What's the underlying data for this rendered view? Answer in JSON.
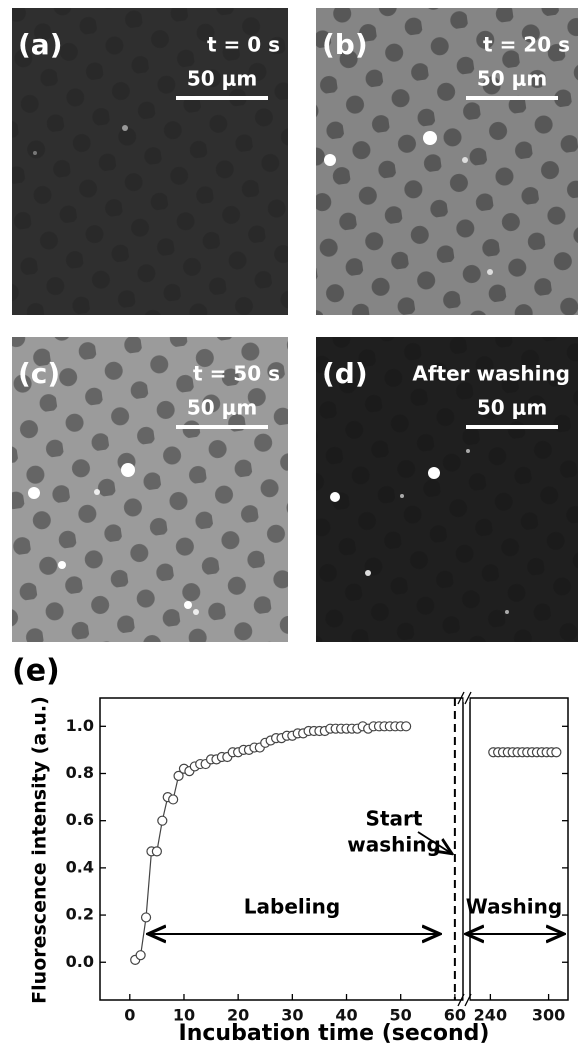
{
  "panels": [
    {
      "label": "(a)",
      "time": "t = 0 s",
      "scale": "50 μm"
    },
    {
      "label": "(b)",
      "time": "t = 20 s",
      "scale": "50 μm"
    },
    {
      "label": "(c)",
      "time": "t = 50 s",
      "scale": "50 μm"
    },
    {
      "label": "(d)",
      "time": "After washing",
      "scale": "50 μm"
    }
  ],
  "chart_data": {
    "type": "line",
    "panel_label": "(e)",
    "x_label": "Incubation time (second)",
    "y_label": "Fluorescence intensity (a.u.)",
    "segments": [
      {
        "xlim": [
          -5.5,
          61.5
        ],
        "xticks": [
          0,
          10,
          20,
          30,
          40,
          50,
          60
        ]
      },
      {
        "xlim": [
          219,
          320
        ],
        "xticks": [
          240,
          300
        ]
      }
    ],
    "ylim": [
      -0.16,
      1.12
    ],
    "yticks": [
      {
        "value": 0,
        "label": "0.0"
      },
      {
        "value": 0.2,
        "label": "0.2"
      },
      {
        "value": 0.4,
        "label": "0.4"
      },
      {
        "value": 0.6,
        "label": "0.6"
      },
      {
        "value": 0.8,
        "label": "0.8"
      },
      {
        "value": 1,
        "label": "1.0"
      }
    ],
    "vline": 60,
    "series": [
      {
        "color": "#444444",
        "line": true,
        "x": [
          1,
          2,
          3,
          4,
          5,
          6,
          7,
          8,
          9,
          10,
          11,
          12,
          13,
          14,
          15,
          16,
          17,
          18,
          19,
          20,
          21,
          22,
          23,
          24,
          25,
          26,
          27,
          28,
          29,
          30,
          31,
          32,
          33,
          34,
          35,
          36,
          37,
          38,
          39,
          40,
          41,
          42,
          43,
          44,
          45,
          46,
          47,
          48,
          49,
          50,
          51
        ],
        "values": [
          0.01,
          0.03,
          0.19,
          0.47,
          0.47,
          0.6,
          0.7,
          0.69,
          0.79,
          0.82,
          0.81,
          0.83,
          0.84,
          0.84,
          0.86,
          0.86,
          0.87,
          0.87,
          0.89,
          0.89,
          0.9,
          0.9,
          0.91,
          0.91,
          0.93,
          0.94,
          0.95,
          0.95,
          0.96,
          0.96,
          0.97,
          0.97,
          0.98,
          0.98,
          0.98,
          0.98,
          0.99,
          0.99,
          0.99,
          0.99,
          0.99,
          0.99,
          1.0,
          0.99,
          1.0,
          1.0,
          1.0,
          1.0,
          1.0,
          1.0,
          1.0
        ]
      },
      {
        "color": "#444444",
        "line": false,
        "x": [
          243,
          248,
          253,
          258,
          263,
          268,
          273,
          278,
          283,
          288,
          293,
          298,
          303,
          308
        ],
        "values": [
          0.89,
          0.89,
          0.89,
          0.89,
          0.89,
          0.89,
          0.89,
          0.89,
          0.89,
          0.89,
          0.89,
          0.89,
          0.89,
          0.89
        ]
      }
    ],
    "annotations": {
      "labeling": "Labeling",
      "washing": "Washing",
      "start_washing": [
        "Start",
        "washing"
      ]
    }
  }
}
